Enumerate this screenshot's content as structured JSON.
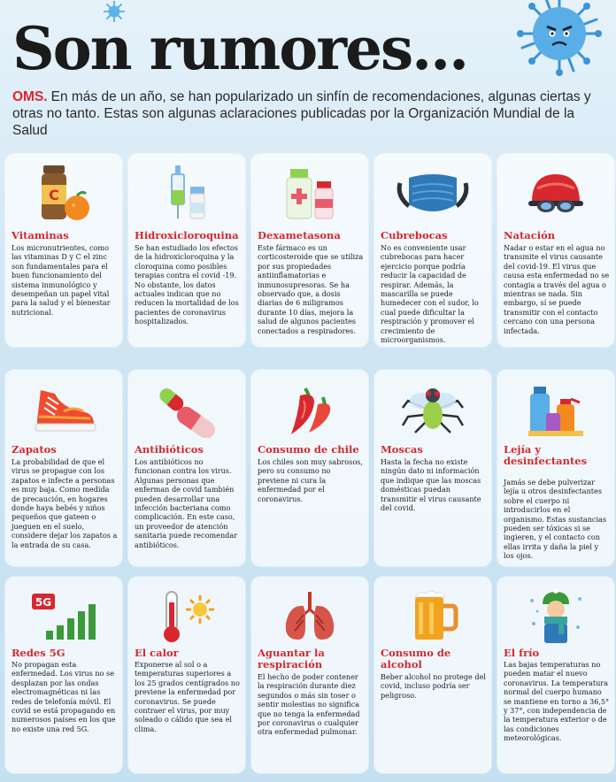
{
  "header": {
    "title": "Son rumores...",
    "source": "OMS.",
    "lead": "En más de un año, se han popularizado un sinfín de recomendaciones, algunas ciertas y otras no tanto. Estas son algunas aclaraciones publicadas por la Organización Mundial de la Salud"
  },
  "colors": {
    "accent": "#d7282f",
    "background": "#cfe6f4",
    "card": "#ffffff"
  },
  "cards": [
    {
      "title": "Vitaminas",
      "icon": "vitamin-c-bottle-orange-icon",
      "text": "Los micronutrientes, como las vitaminas D y C el zinc son fundamentales para el buen funcionamiento del sistema inmunológico y desempeñan un papel vital para la salud y el bienestar nutricional."
    },
    {
      "title": "Hidroxicloroquina",
      "icon": "syringe-vial-icon",
      "text": "Se han estudiado los efectos de la hidroxicloroquina y la cloroquina como posibles terapias contra el covid -19. No obstante, los datos actuales indican que no reducen la mortalidad de los pacientes de coronavirus hospitalizados."
    },
    {
      "title": "Dexametasona",
      "icon": "medicine-bottles-icon",
      "text": "Este fármaco es un corticosteroide que se utiliza por sus propiedades antiinflamatorias e inmunosupresoras. Se ha observado que, a dosis diarias de 6 miligramos durante 10 días, mejora la salud de algunos pacientes conectados a respiradores."
    },
    {
      "title": "Cubrebocas",
      "icon": "face-mask-icon",
      "text": "No es conveniente usar cubrebocas para hacer ejercicio porque podría reducir la capacidad de respirar. Además, la mascarilla se puede humedecer con el sudor, lo cual puede dificultar la respiración y promover el crecimiento de microorganismos."
    },
    {
      "title": "Natación",
      "icon": "swim-cap-goggles-icon",
      "text": "Nadar o estar en el agua no transmite el virus causante del covid-19. El virus que causa esta enfermedad no se contagia a través del agua o mientras se nada. Sin embargo, sí se puede transmitir con el contacto cercano con una persona infectada."
    },
    {
      "title": "Zapatos",
      "icon": "sneaker-icon",
      "text": "La probabilidad de que el virus se propague con los zapatos e infecte a personas es muy baja. Como medida de precaución, en hogares donde haya bebés y niños pequeños que gateen o jueguen en el suelo, considere dejar los zapatos a la entrada de su casa."
    },
    {
      "title": "Antibióticos",
      "icon": "pill-capsules-icon",
      "text": "Los antibióticos no funcionan contra los virus. Algunas personas que enferman de covid también pueden desarrollar una infección bacteriana como complicación. En este caso, un proveedor de atención sanitaria puede recomendar antibióticos."
    },
    {
      "title": "Consumo de chile",
      "icon": "chili-peppers-icon",
      "text": "Los chiles son muy sabrosos, pero su consumo no previene ni cura la enfermedad por el coronavirus."
    },
    {
      "title": "Moscas",
      "icon": "fly-icon",
      "text": "Hasta la fecha no existe ningún dato ni información que indique que las moscas domésticas puedan transmitir el virus causante del covid."
    },
    {
      "title": "Lejía y desinfectantes",
      "icon": "cleaning-products-icon",
      "text": "Jamás se debe pulverizar lejía u otros desinfectantes sobre el cuerpo ni introducirlos en el organismo. Estas sustancias pueden ser tóxicas si se ingieren, y el contacto con ellas irrita y daña la piel y los ojos."
    },
    {
      "title": "Redes 5G",
      "icon": "5g-signal-icon",
      "text": "No propagan esta enfermedad. Los virus no se desplazan por las ondas electromagnéticas ni las redes de telefonía móvil. El covid se está propagando en numerosos países en los que no existe una red 5G."
    },
    {
      "title": "El calor",
      "icon": "thermometer-sun-icon",
      "text": "Exponerse al sol o a temperaturas superiores a los 25 grados centígrados no previene la enfermedad por coronavirus. Se puede contraer el virus, por muy soleado o cálido que sea el clima."
    },
    {
      "title": "Aguantar la respiración",
      "icon": "lungs-icon",
      "text": "El hecho de poder contener la respiración durante diez segundos o más sin toser o sentir molestias no significa que no tenga la enfermedad por coronavirus o cualquier otra enfermedad pulmonar."
    },
    {
      "title": "Consumo de alcohol",
      "icon": "beer-mug-icon",
      "text": "Beber alcohol no protege del covid, incluso podría ser peligroso."
    },
    {
      "title": "El frío",
      "icon": "winter-person-icon",
      "text": "Las bajas temperaturas no pueden matar el nuevo coronavirus. La temperatura normal del cuerpo humano se mantiene en torno a 36,5° y 37°, con independencia de la temperatura exterior o de las condiciones meteorológicas."
    }
  ]
}
